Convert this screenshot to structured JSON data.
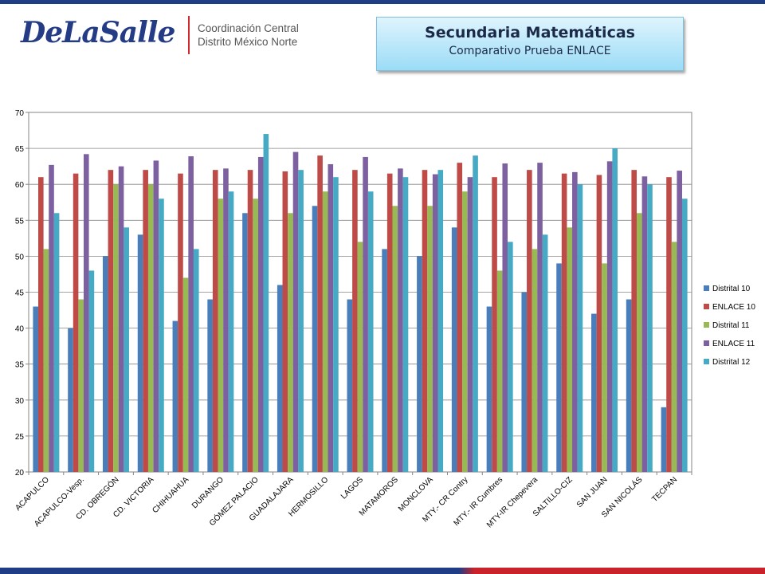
{
  "logo": {
    "brand": "DeLaSalle",
    "line1": "Coordinación Central",
    "line2": "Distrito México Norte"
  },
  "header": {
    "title": "Secundaria Matemáticas",
    "subtitle": "Comparativo Prueba ENLACE"
  },
  "chart_data": {
    "type": "bar",
    "categories": [
      "ACAPULCO",
      "ACAPULCO-Vesp.",
      "CD. OBREGÓN",
      "CD. VICTORIA",
      "CHIHUAHUA",
      "DURANGO",
      "GÓMEZ PALACIO",
      "GUADALAJARA",
      "HERMOSILLO",
      "LAGOS",
      "MATAMOROS",
      "MONCLOVA",
      "MTY.- CR Contry",
      "MTY.- IR Cumbres",
      "MTY-IR Chepevera",
      "SALTILLO-CIZ",
      "SAN JUAN",
      "SAN NICOLÁS",
      "TECPAN"
    ],
    "series": [
      {
        "name": "Distrital 10",
        "color": "#4a7ebb",
        "values": [
          43,
          40,
          50,
          53,
          41,
          44,
          56,
          46,
          57,
          44,
          51,
          50,
          54,
          43,
          45,
          49,
          42,
          44,
          29
        ]
      },
      {
        "name": "ENLACE 10",
        "color": "#be4b48",
        "values": [
          61,
          61.5,
          62,
          62,
          61.5,
          62,
          62,
          61.8,
          64,
          62,
          61.5,
          62,
          63,
          61,
          62,
          61.5,
          61.3,
          62,
          61
        ]
      },
      {
        "name": "Distrital 11",
        "color": "#98b954",
        "values": [
          51,
          44,
          60,
          60,
          47,
          58,
          58,
          56,
          59,
          52,
          57,
          57,
          59,
          48,
          51,
          54,
          49,
          56,
          52
        ]
      },
      {
        "name": "ENLACE 11",
        "color": "#7d60a0",
        "values": [
          62.7,
          64.2,
          62.5,
          63.3,
          63.9,
          62.2,
          63.8,
          64.5,
          62.8,
          63.8,
          62.2,
          61.4,
          61,
          62.9,
          63,
          61.7,
          63.2,
          61.1,
          61.9
        ]
      },
      {
        "name": "Distrital 12",
        "color": "#46aac5",
        "values": [
          56,
          48,
          54,
          58,
          51,
          59,
          67,
          62,
          61,
          59,
          61,
          62,
          64,
          52,
          53,
          60,
          65,
          60,
          58
        ]
      }
    ],
    "ylim": [
      20,
      70
    ],
    "yticks": [
      20,
      25,
      30,
      35,
      40,
      45,
      50,
      55,
      60,
      65,
      70
    ],
    "grid": true,
    "legend_position": "right"
  }
}
